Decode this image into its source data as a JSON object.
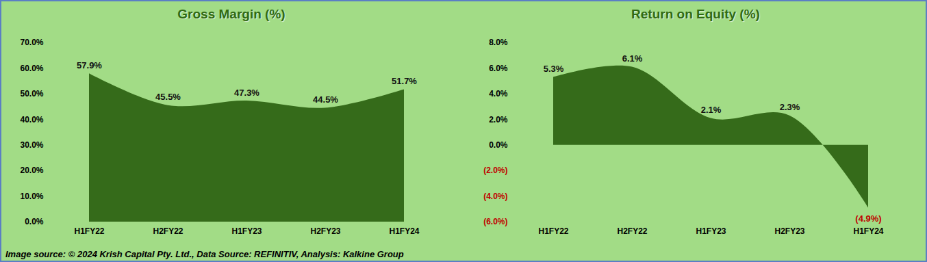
{
  "chart_data": [
    {
      "type": "area",
      "title": "Gross Margin (%)",
      "categories": [
        "H1FY22",
        "H2FY22",
        "H1FY23",
        "H2FY23",
        "H1FY24"
      ],
      "values": [
        57.9,
        45.5,
        47.3,
        44.5,
        51.7
      ],
      "value_labels": [
        "57.9%",
        "45.5%",
        "47.3%",
        "44.5%",
        "51.7%"
      ],
      "data_labels": true,
      "color": "#356b1a",
      "ylim": [
        0,
        70
      ],
      "yticks": [
        {
          "value": 0,
          "label": "0.0%"
        },
        {
          "value": 10,
          "label": "10.0%"
        },
        {
          "value": 20,
          "label": "20.0%"
        },
        {
          "value": 30,
          "label": "30.0%"
        },
        {
          "value": 40,
          "label": "40.0%"
        },
        {
          "value": 50,
          "label": "50.0%"
        },
        {
          "value": 60,
          "label": "60.0%"
        },
        {
          "value": 70,
          "label": "70.0%"
        }
      ]
    },
    {
      "type": "area",
      "title": "Return on Equity (%)",
      "categories": [
        "H1FY22",
        "H2FY22",
        "H1FY23",
        "H2FY23",
        "H1FY24"
      ],
      "values": [
        5.3,
        6.1,
        2.1,
        2.3,
        -4.9
      ],
      "value_labels": [
        "5.3%",
        "6.1%",
        "2.1%",
        "2.3%",
        "(4.9%)"
      ],
      "data_labels": true,
      "color": "#356b1a",
      "ylim": [
        -6,
        8
      ],
      "yticks": [
        {
          "value": -6,
          "label": "(6.0%)"
        },
        {
          "value": -4,
          "label": "(4.0%)"
        },
        {
          "value": -2,
          "label": "(2.0%)"
        },
        {
          "value": 0,
          "label": "0.0%"
        },
        {
          "value": 2,
          "label": "2.0%"
        },
        {
          "value": 4,
          "label": "4.0%"
        },
        {
          "value": 6,
          "label": "6.0%"
        },
        {
          "value": 8,
          "label": "8.0%"
        }
      ]
    }
  ],
  "caption": "Image source: © 2024 Krish Capital Pty. Ltd., Data Source: REFINITIV, Analysis: Kalkine Group"
}
